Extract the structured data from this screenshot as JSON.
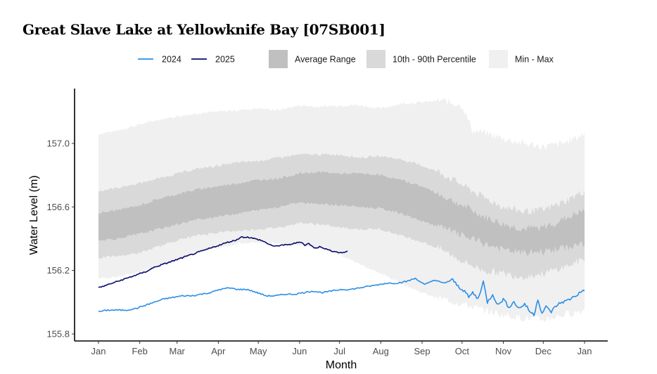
{
  "title": "Great Slave Lake at Yellowknife Bay [07SB001]",
  "chart_data": {
    "type": "area",
    "title": "Great Slave Lake at Yellowknife Bay [07SB001]",
    "xlabel": "Month",
    "ylabel": "Water Level (m)",
    "x_unit": "day of year",
    "xlim": [
      1,
      366
    ],
    "ylim": [
      155.78,
      157.4
    ],
    "y_ticks": [
      155.8,
      156.2,
      156.6,
      157.0
    ],
    "y_tick_labels": [
      "155.8",
      "156.2",
      "156.6",
      "157.0"
    ],
    "x_ticks": [
      1,
      32,
      60,
      91,
      121,
      152,
      182,
      213,
      244,
      274,
      305,
      335,
      366
    ],
    "x_tick_labels": [
      "Jan",
      "Feb",
      "Mar",
      "Apr",
      "May",
      "Jun",
      "Jul",
      "Aug",
      "Sep",
      "Oct",
      "Nov",
      "Dec",
      "Jan"
    ],
    "grid": false,
    "legend_position": "top",
    "legend": [
      {
        "label": "2024",
        "kind": "line",
        "color": "#2b8ee6"
      },
      {
        "label": "2025",
        "kind": "line",
        "color": "#0a0a6e"
      },
      {
        "label": "Average Range",
        "kind": "band",
        "color": "#c0c0c0"
      },
      {
        "label": "10th - 90th Percentile",
        "kind": "band",
        "color": "#d9d9d9"
      },
      {
        "label": "Min - Max",
        "kind": "band",
        "color": "#f0f0f0"
      }
    ],
    "bands": [
      {
        "name": "Min - Max",
        "color": "#f0f0f0",
        "x": [
          1,
          15,
          32,
          46,
          60,
          75,
          91,
          106,
          121,
          136,
          152,
          167,
          182,
          197,
          213,
          228,
          244,
          259,
          274,
          282,
          290,
          305,
          320,
          335,
          350,
          366
        ],
        "upper": [
          157.06,
          157.08,
          157.12,
          157.15,
          157.17,
          157.19,
          157.2,
          157.21,
          157.22,
          157.21,
          157.24,
          157.23,
          157.24,
          157.24,
          157.22,
          157.25,
          157.26,
          157.27,
          157.24,
          157.08,
          157.07,
          157.03,
          157.0,
          156.98,
          157.0,
          157.06
        ],
        "lower": [
          156.15,
          156.16,
          156.19,
          156.22,
          156.26,
          156.31,
          156.34,
          156.37,
          156.38,
          156.37,
          156.36,
          156.34,
          156.3,
          156.24,
          156.18,
          156.12,
          156.06,
          156.02,
          155.99,
          155.97,
          155.95,
          155.92,
          155.9,
          155.89,
          155.92,
          155.95
        ]
      },
      {
        "name": "10th - 90th Percentile",
        "color": "#d9d9d9",
        "x": [
          1,
          15,
          32,
          46,
          60,
          75,
          91,
          106,
          121,
          136,
          152,
          167,
          182,
          197,
          213,
          228,
          244,
          259,
          274,
          290,
          305,
          320,
          335,
          350,
          366
        ],
        "upper": [
          156.7,
          156.72,
          156.75,
          156.78,
          156.81,
          156.84,
          156.86,
          156.88,
          156.89,
          156.91,
          156.93,
          156.93,
          156.93,
          156.91,
          156.92,
          156.9,
          156.86,
          156.81,
          156.74,
          156.66,
          156.6,
          156.57,
          156.58,
          156.63,
          156.7
        ],
        "lower": [
          156.28,
          156.29,
          156.31,
          156.35,
          156.39,
          156.42,
          156.44,
          156.45,
          156.46,
          156.47,
          156.5,
          156.49,
          156.47,
          156.46,
          156.46,
          156.42,
          156.38,
          156.33,
          156.26,
          156.2,
          156.18,
          156.16,
          156.18,
          156.22,
          156.27
        ]
      },
      {
        "name": "Average Range",
        "color": "#c0c0c0",
        "x": [
          1,
          15,
          32,
          46,
          60,
          75,
          91,
          106,
          121,
          136,
          152,
          167,
          182,
          197,
          213,
          228,
          244,
          259,
          274,
          290,
          305,
          320,
          335,
          350,
          366
        ],
        "upper": [
          156.56,
          156.58,
          156.61,
          156.65,
          156.68,
          156.71,
          156.73,
          156.75,
          156.77,
          156.78,
          156.81,
          156.82,
          156.81,
          156.81,
          156.8,
          156.77,
          156.73,
          156.67,
          156.61,
          156.54,
          156.49,
          156.46,
          156.47,
          156.52,
          156.58
        ],
        "lower": [
          156.39,
          156.4,
          156.43,
          156.46,
          156.49,
          156.52,
          156.54,
          156.56,
          156.58,
          156.6,
          156.63,
          156.62,
          156.61,
          156.6,
          156.59,
          156.56,
          156.51,
          156.47,
          156.42,
          156.37,
          156.33,
          156.31,
          156.32,
          156.34,
          156.37
        ]
      }
    ],
    "series": [
      {
        "name": "2024",
        "color": "#2b8ee6",
        "x": [
          1,
          8,
          15,
          22,
          29,
          36,
          43,
          50,
          57,
          64,
          71,
          78,
          85,
          92,
          99,
          106,
          113,
          120,
          127,
          134,
          141,
          148,
          155,
          162,
          169,
          176,
          183,
          190,
          197,
          204,
          211,
          218,
          225,
          232,
          239,
          246,
          253,
          260,
          267,
          271,
          276,
          279,
          282,
          286,
          290,
          293,
          297,
          301,
          305,
          309,
          313,
          317,
          321,
          325,
          328,
          331,
          334,
          337,
          341,
          345,
          349,
          353,
          357,
          361,
          366
        ],
        "values": [
          155.94,
          155.95,
          155.95,
          155.95,
          155.96,
          155.98,
          156.0,
          156.02,
          156.03,
          156.04,
          156.04,
          156.05,
          156.06,
          156.08,
          156.09,
          156.08,
          156.08,
          156.06,
          156.04,
          156.04,
          156.05,
          156.05,
          156.06,
          156.07,
          156.06,
          156.07,
          156.08,
          156.08,
          156.09,
          156.1,
          156.11,
          156.12,
          156.12,
          156.13,
          156.15,
          156.11,
          156.14,
          156.12,
          156.14,
          156.1,
          156.07,
          156.03,
          156.06,
          156.02,
          156.13,
          156.0,
          156.05,
          155.98,
          156.02,
          155.97,
          156.0,
          155.96,
          155.99,
          155.94,
          155.92,
          156.02,
          155.93,
          155.97,
          155.94,
          155.98,
          156.0,
          156.01,
          156.03,
          156.05,
          156.08
        ]
      },
      {
        "name": "2025",
        "color": "#0a0a6e",
        "x": [
          1,
          8,
          15,
          22,
          29,
          36,
          43,
          50,
          57,
          64,
          71,
          78,
          85,
          92,
          99,
          104,
          108,
          113,
          118,
          123,
          128,
          133,
          138,
          143,
          148,
          153,
          156,
          159,
          163,
          168,
          173,
          178,
          183,
          188
        ],
        "values": [
          156.09,
          156.11,
          156.13,
          156.15,
          156.17,
          156.19,
          156.22,
          156.24,
          156.26,
          156.28,
          156.3,
          156.32,
          156.34,
          156.36,
          156.38,
          156.39,
          156.41,
          156.41,
          156.4,
          156.39,
          156.37,
          156.35,
          156.36,
          156.36,
          156.37,
          156.38,
          156.36,
          156.37,
          156.34,
          156.35,
          156.33,
          156.32,
          156.31,
          156.32
        ]
      }
    ]
  }
}
